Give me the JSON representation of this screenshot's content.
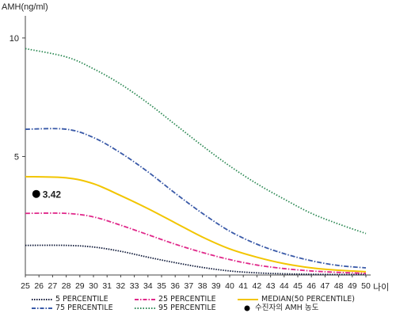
{
  "chart_data": {
    "type": "line",
    "ylabel": "AMH(ng/ml)",
    "xlabel": "나이",
    "xlim": [
      25,
      50
    ],
    "ylim": [
      0,
      11
    ],
    "x_ticks": [
      "25",
      "26",
      "27",
      "28",
      "29",
      "30",
      "31",
      "32",
      "33",
      "34",
      "35",
      "36",
      "37",
      "38",
      "39",
      "40",
      "41",
      "42",
      "43",
      "44",
      "45",
      "46",
      "47",
      "48",
      "49",
      "50"
    ],
    "y_ticks": [
      "5",
      "10"
    ],
    "y_tick_values": [
      5,
      10
    ],
    "series": [
      {
        "name": "5 PERCENTILE",
        "color": "#101a3a",
        "dash": "dotted-dense",
        "x": [
          25,
          28,
          30,
          32,
          34,
          36,
          38,
          40,
          42,
          44,
          46,
          48,
          50
        ],
        "y": [
          1.25,
          1.25,
          1.18,
          1.0,
          0.75,
          0.52,
          0.32,
          0.17,
          0.09,
          0.05,
          0.03,
          0.02,
          0.02
        ]
      },
      {
        "name": "25 PERCENTILE",
        "color": "#e0288a",
        "dash": "dash-dot",
        "x": [
          25,
          28,
          30,
          32,
          34,
          36,
          38,
          40,
          42,
          44,
          46,
          48,
          50
        ],
        "y": [
          2.6,
          2.6,
          2.45,
          2.1,
          1.7,
          1.3,
          0.95,
          0.65,
          0.42,
          0.27,
          0.17,
          0.11,
          0.07
        ]
      },
      {
        "name": "MEDIAN(50 PERCENTILE)",
        "color": "#f2c500",
        "dash": "solid",
        "x": [
          25,
          28,
          30,
          32,
          34,
          36,
          38,
          40,
          42,
          44,
          46,
          48,
          50
        ],
        "y": [
          4.15,
          4.1,
          3.85,
          3.35,
          2.8,
          2.2,
          1.6,
          1.1,
          0.75,
          0.48,
          0.3,
          0.2,
          0.14
        ]
      },
      {
        "name": "75 PERCENTILE",
        "color": "#3a5aa8",
        "dash": "dash-dot",
        "x": [
          25,
          28,
          30,
          32,
          34,
          36,
          38,
          40,
          42,
          44,
          46,
          48,
          50
        ],
        "y": [
          6.15,
          6.15,
          5.8,
          5.15,
          4.35,
          3.45,
          2.6,
          1.85,
          1.3,
          0.9,
          0.6,
          0.4,
          0.3
        ]
      },
      {
        "name": "95 PERCENTILE",
        "color": "#2e8a55",
        "dash": "dotted",
        "x": [
          25,
          28,
          30,
          32,
          34,
          36,
          38,
          40,
          42,
          44,
          46,
          48,
          50
        ],
        "y": [
          9.55,
          9.2,
          8.7,
          8.05,
          7.25,
          6.35,
          5.45,
          4.6,
          3.85,
          3.2,
          2.6,
          2.15,
          1.75
        ]
      }
    ],
    "points": [
      {
        "name": "수진자의 AMH 농도",
        "x": 25.8,
        "y": 3.42,
        "label": "3.42",
        "color": "#000000"
      }
    ],
    "legend_position": "bottom",
    "grid": false
  }
}
